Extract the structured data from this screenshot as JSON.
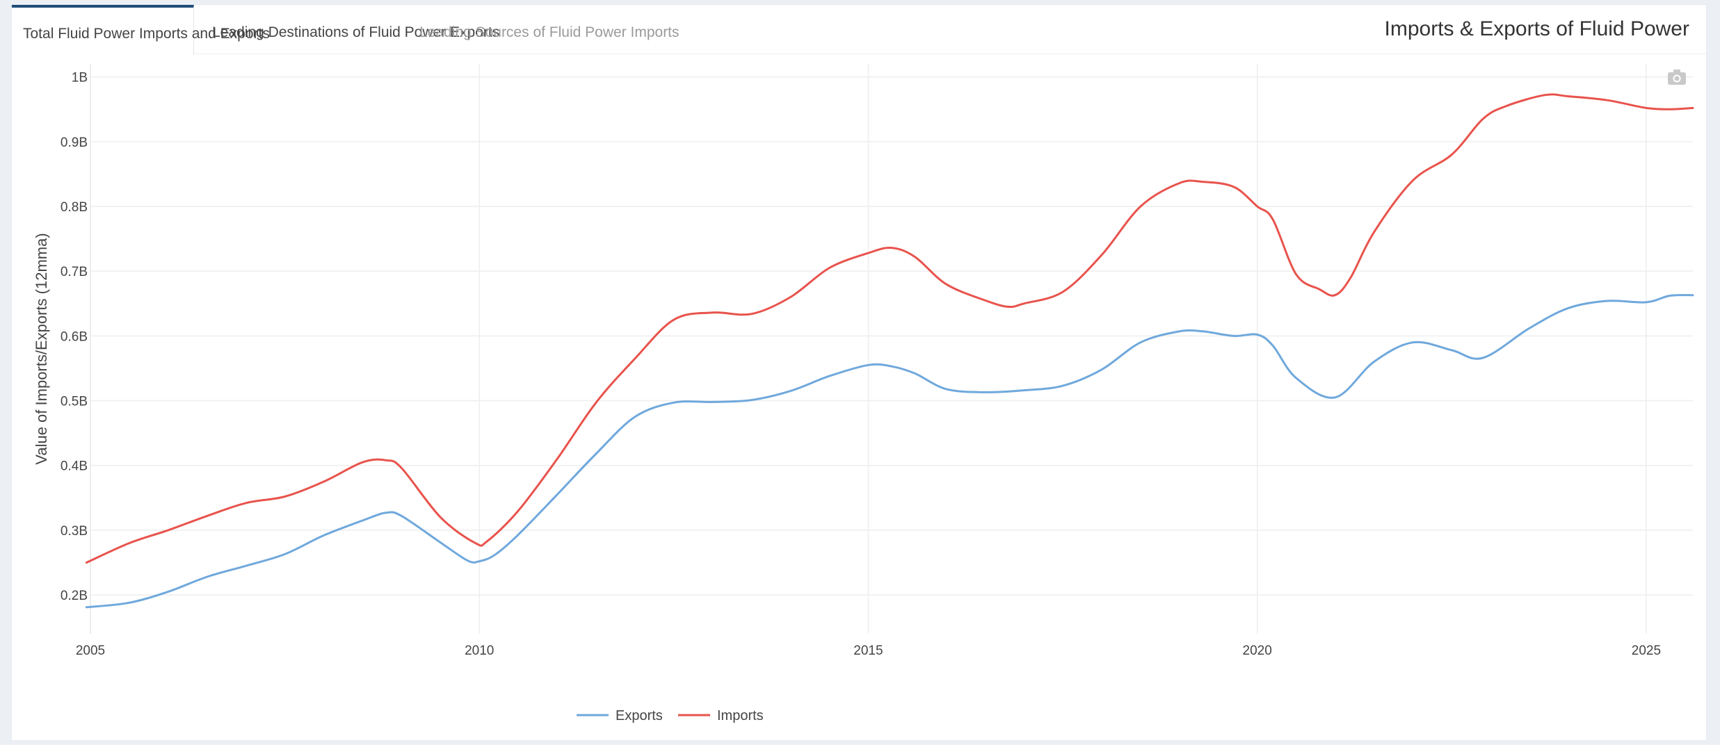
{
  "tabs": [
    {
      "label": "Total Fluid Power Imports and Exports"
    },
    {
      "label": "Leading Destinations of Fluid Power Exports"
    },
    {
      "label": "Leading Sources of Fluid Power Imports"
    }
  ],
  "box_title": "Imports & Exports of Fluid Power",
  "icons": {
    "camera": "camera-icon"
  },
  "colors": {
    "exports": "#6fa8dc",
    "imports": "#e8534c",
    "tab_active": "#1f4e79"
  },
  "chart_data": {
    "type": "line",
    "title": "",
    "xlabel": "",
    "ylabel": "Value of Imports/Exports (12mma)",
    "xlim": [
      2005,
      2025.6
    ],
    "ylim": [
      0.14,
      1.02
    ],
    "x_ticks": [
      2005,
      2010,
      2015,
      2020,
      2025
    ],
    "x_tick_labels": [
      "2005",
      "2010",
      "2015",
      "2020",
      "2025"
    ],
    "y_ticks": [
      0.2,
      0.3,
      0.4,
      0.5,
      0.6,
      0.7,
      0.8,
      0.9,
      1.0
    ],
    "y_tick_labels": [
      "0.2B",
      "0.3B",
      "0.4B",
      "0.5B",
      "0.6B",
      "0.7B",
      "0.8B",
      "0.9B",
      "1B"
    ],
    "legend": [
      "Exports",
      "Imports"
    ],
    "series": [
      {
        "name": "Exports",
        "x": [
          2004.95,
          2005.5,
          2006.0,
          2006.5,
          2007.0,
          2007.5,
          2008.0,
          2008.5,
          2008.8,
          2009.0,
          2009.5,
          2009.85,
          2010.0,
          2010.2,
          2010.5,
          2011.0,
          2011.5,
          2012.0,
          2012.5,
          2013.0,
          2013.5,
          2014.0,
          2014.5,
          2015.0,
          2015.3,
          2015.6,
          2016.0,
          2016.5,
          2017.0,
          2017.5,
          2018.0,
          2018.5,
          2019.0,
          2019.3,
          2019.7,
          2020.0,
          2020.2,
          2020.5,
          2021.0,
          2021.5,
          2022.0,
          2022.5,
          2022.9,
          2023.5,
          2024.0,
          2024.5,
          2025.0,
          2025.3,
          2025.6
        ],
        "values": [
          0.181,
          0.188,
          0.205,
          0.228,
          0.245,
          0.263,
          0.292,
          0.315,
          0.327,
          0.322,
          0.281,
          0.253,
          0.252,
          0.262,
          0.293,
          0.355,
          0.418,
          0.475,
          0.497,
          0.498,
          0.501,
          0.515,
          0.538,
          0.555,
          0.553,
          0.542,
          0.518,
          0.513,
          0.516,
          0.523,
          0.548,
          0.59,
          0.607,
          0.607,
          0.6,
          0.602,
          0.585,
          0.535,
          0.505,
          0.56,
          0.59,
          0.578,
          0.566,
          0.612,
          0.643,
          0.654,
          0.652,
          0.662,
          0.663
        ]
      },
      {
        "name": "Imports",
        "x": [
          2004.95,
          2005.5,
          2006.0,
          2006.5,
          2007.0,
          2007.5,
          2008.0,
          2008.5,
          2008.8,
          2009.0,
          2009.5,
          2009.95,
          2010.1,
          2010.5,
          2011.0,
          2011.5,
          2012.0,
          2012.5,
          2013.0,
          2013.5,
          2014.0,
          2014.5,
          2015.0,
          2015.3,
          2015.6,
          2016.0,
          2016.5,
          2016.8,
          2017.0,
          2017.5,
          2018.0,
          2018.5,
          2019.0,
          2019.3,
          2019.7,
          2020.0,
          2020.2,
          2020.5,
          2020.8,
          2021.0,
          2021.2,
          2021.5,
          2022.0,
          2022.5,
          2022.9,
          2023.2,
          2023.7,
          2024.0,
          2024.5,
          2025.0,
          2025.3,
          2025.6
        ],
        "values": [
          0.25,
          0.28,
          0.3,
          0.322,
          0.342,
          0.352,
          0.375,
          0.405,
          0.408,
          0.396,
          0.32,
          0.28,
          0.283,
          0.33,
          0.41,
          0.497,
          0.565,
          0.625,
          0.636,
          0.634,
          0.66,
          0.705,
          0.728,
          0.736,
          0.722,
          0.68,
          0.655,
          0.645,
          0.65,
          0.668,
          0.725,
          0.8,
          0.836,
          0.838,
          0.83,
          0.8,
          0.78,
          0.695,
          0.672,
          0.663,
          0.69,
          0.76,
          0.84,
          0.88,
          0.935,
          0.955,
          0.972,
          0.97,
          0.964,
          0.952,
          0.95,
          0.952
        ]
      }
    ]
  }
}
